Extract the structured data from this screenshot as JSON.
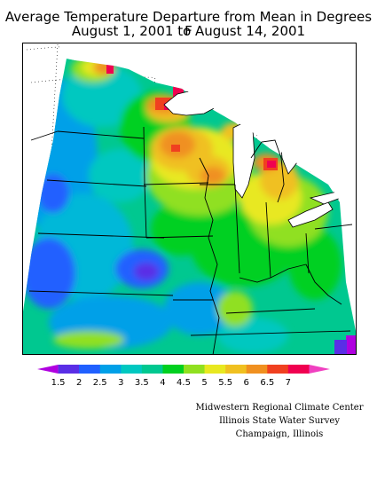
{
  "title": {
    "line1": "Average Temperature Departure from Mean in Degrees F",
    "line2": "August 1, 2001 to August 14, 2001"
  },
  "legend": {
    "labels": [
      "1.5",
      "2",
      "2.5",
      "3",
      "3.5",
      "4",
      "4.5",
      "5",
      "5.5",
      "6",
      "6.5",
      "7"
    ],
    "colors": [
      "#b000e0",
      "#5a2ee6",
      "#2060ff",
      "#00a0e8",
      "#00c8c0",
      "#00c890",
      "#00d020",
      "#90e020",
      "#e8e820",
      "#f0c020",
      "#f09020",
      "#f04020",
      "#f00050",
      "#f040c0"
    ]
  },
  "credits": {
    "line1": "Midwestern Regional Climate Center",
    "line2": "Illinois State Water Survey",
    "line3": "Champaign, Illinois"
  }
}
